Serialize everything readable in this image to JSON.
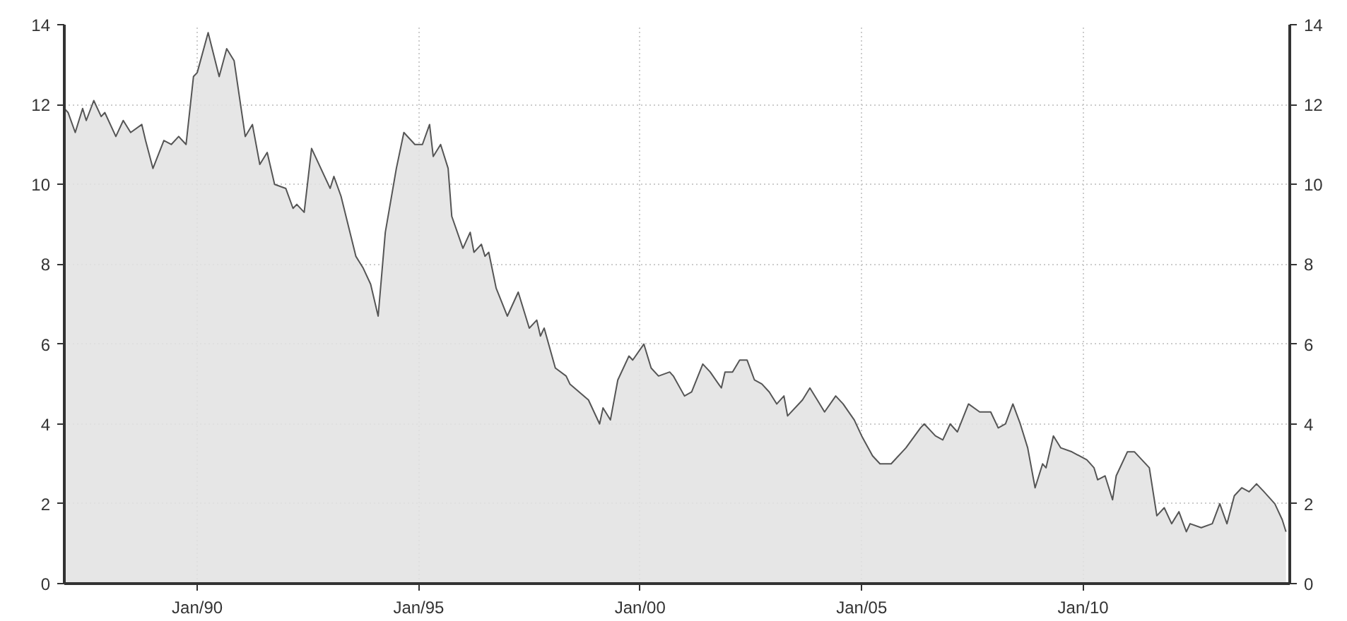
{
  "chart_data": {
    "type": "area",
    "x": [
      "1987-01",
      "1987-02",
      "1987-04",
      "1987-06",
      "1987-07",
      "1987-09",
      "1987-11",
      "1987-12",
      "1988-03",
      "1988-05",
      "1988-07",
      "1988-10",
      "1988-11",
      "1989-01",
      "1989-04",
      "1989-06",
      "1989-08",
      "1989-10",
      "1989-12",
      "1990-01",
      "1990-04",
      "1990-07",
      "1990-09",
      "1990-11",
      "1991-02",
      "1991-04",
      "1991-06",
      "1991-08",
      "1991-10",
      "1992-01",
      "1992-03",
      "1992-04",
      "1992-06",
      "1992-08",
      "1993-01",
      "1993-02",
      "1993-04",
      "1993-08",
      "1993-10",
      "1993-12",
      "1994-02",
      "1994-04",
      "1994-07",
      "1994-09",
      "1994-12",
      "1995-02",
      "1995-04",
      "1995-05",
      "1995-07",
      "1995-09",
      "1995-10",
      "1996-01",
      "1996-03",
      "1996-04",
      "1996-06",
      "1996-07",
      "1996-08",
      "1996-10",
      "1997-01",
      "1997-04",
      "1997-07",
      "1997-09",
      "1997-10",
      "1997-11",
      "1998-02",
      "1998-05",
      "1998-06",
      "1998-11",
      "1999-02",
      "1999-03",
      "1999-05",
      "1999-07",
      "1999-10",
      "1999-11",
      "2000-02",
      "2000-04",
      "2000-06",
      "2000-09",
      "2000-10",
      "2001-01",
      "2001-03",
      "2001-06",
      "2001-08",
      "2001-11",
      "2001-12",
      "2002-02",
      "2002-04",
      "2002-06",
      "2002-08",
      "2002-10",
      "2002-12",
      "2003-02",
      "2003-04",
      "2003-05",
      "2003-09",
      "2003-11",
      "2004-01",
      "2004-03",
      "2004-06",
      "2004-08",
      "2004-11",
      "2005-01",
      "2005-04",
      "2005-06",
      "2005-09",
      "2005-12",
      "2006-01",
      "2006-05",
      "2006-06",
      "2006-09",
      "2006-11",
      "2007-01",
      "2007-03",
      "2007-06",
      "2007-09",
      "2007-10",
      "2007-12",
      "2008-02",
      "2008-04",
      "2008-06",
      "2008-08",
      "2008-10",
      "2008-12",
      "2009-02",
      "2009-03",
      "2009-05",
      "2009-07",
      "2009-10",
      "2009-12",
      "2010-02",
      "2010-04",
      "2010-05",
      "2010-07",
      "2010-09",
      "2010-10",
      "2011-01",
      "2011-03",
      "2011-05",
      "2011-07",
      "2011-09",
      "2011-11",
      "2012-01",
      "2012-03",
      "2012-05",
      "2012-06",
      "2012-09",
      "2012-12",
      "2013-02",
      "2013-04",
      "2013-06",
      "2013-08",
      "2013-10",
      "2013-12",
      "2014-02",
      "2014-05",
      "2014-07",
      "2014-08"
    ],
    "series": [
      {
        "color": "#555555",
        "values": [
          11.9,
          11.8,
          11.3,
          11.9,
          11.6,
          12.1,
          11.7,
          11.8,
          11.2,
          11.6,
          11.3,
          11.5,
          11.1,
          10.4,
          11.1,
          11.0,
          11.2,
          11.0,
          12.7,
          12.8,
          13.8,
          12.7,
          13.4,
          13.1,
          11.2,
          11.5,
          10.5,
          10.8,
          10.0,
          9.9,
          9.4,
          9.5,
          9.3,
          10.9,
          9.9,
          10.2,
          9.7,
          8.2,
          7.9,
          7.5,
          6.7,
          8.8,
          10.4,
          11.3,
          11.0,
          11.0,
          11.5,
          10.7,
          11.0,
          10.4,
          9.2,
          8.4,
          8.8,
          8.3,
          8.5,
          8.2,
          8.3,
          7.4,
          6.7,
          7.3,
          6.4,
          6.6,
          6.2,
          6.4,
          5.4,
          5.2,
          5.0,
          4.6,
          4.0,
          4.4,
          4.1,
          5.1,
          5.7,
          5.6,
          6.0,
          5.4,
          5.2,
          5.3,
          5.2,
          4.7,
          4.8,
          5.5,
          5.3,
          4.9,
          5.3,
          5.3,
          5.6,
          5.6,
          5.1,
          5.0,
          4.8,
          4.5,
          4.7,
          4.2,
          4.6,
          4.9,
          4.6,
          4.3,
          4.7,
          4.5,
          4.1,
          3.7,
          3.2,
          3.0,
          3.0,
          3.3,
          3.4,
          3.9,
          4.0,
          3.7,
          3.6,
          4.0,
          3.8,
          4.5,
          4.3,
          4.3,
          4.3,
          3.9,
          4.0,
          4.5,
          4.0,
          3.4,
          2.4,
          3.0,
          2.9,
          3.7,
          3.4,
          3.3,
          3.2,
          3.1,
          2.9,
          2.6,
          2.7,
          2.1,
          2.7,
          3.3,
          3.3,
          3.1,
          2.9,
          1.7,
          1.9,
          1.5,
          1.8,
          1.3,
          1.5,
          1.4,
          1.5,
          2.0,
          1.5,
          2.2,
          2.4,
          2.3,
          2.5,
          2.3,
          2.0,
          1.6,
          1.3
        ]
      }
    ],
    "xlim": [
      "1987-01",
      "2014-09"
    ],
    "xticks": [
      {
        "value": "1990-01",
        "label": "Jan/90"
      },
      {
        "value": "1995-01",
        "label": "Jan/95"
      },
      {
        "value": "2000-01",
        "label": "Jan/00"
      },
      {
        "value": "2005-01",
        "label": "Jan/05"
      },
      {
        "value": "2010-01",
        "label": "Jan/10"
      }
    ],
    "ylim": [
      0,
      14
    ],
    "yticks": [
      0,
      2,
      4,
      6,
      8,
      10,
      12,
      14
    ],
    "y2lim": [
      0,
      14
    ],
    "y2ticks": [
      0,
      2,
      4,
      6,
      8,
      10,
      12,
      14
    ],
    "grid": true
  }
}
